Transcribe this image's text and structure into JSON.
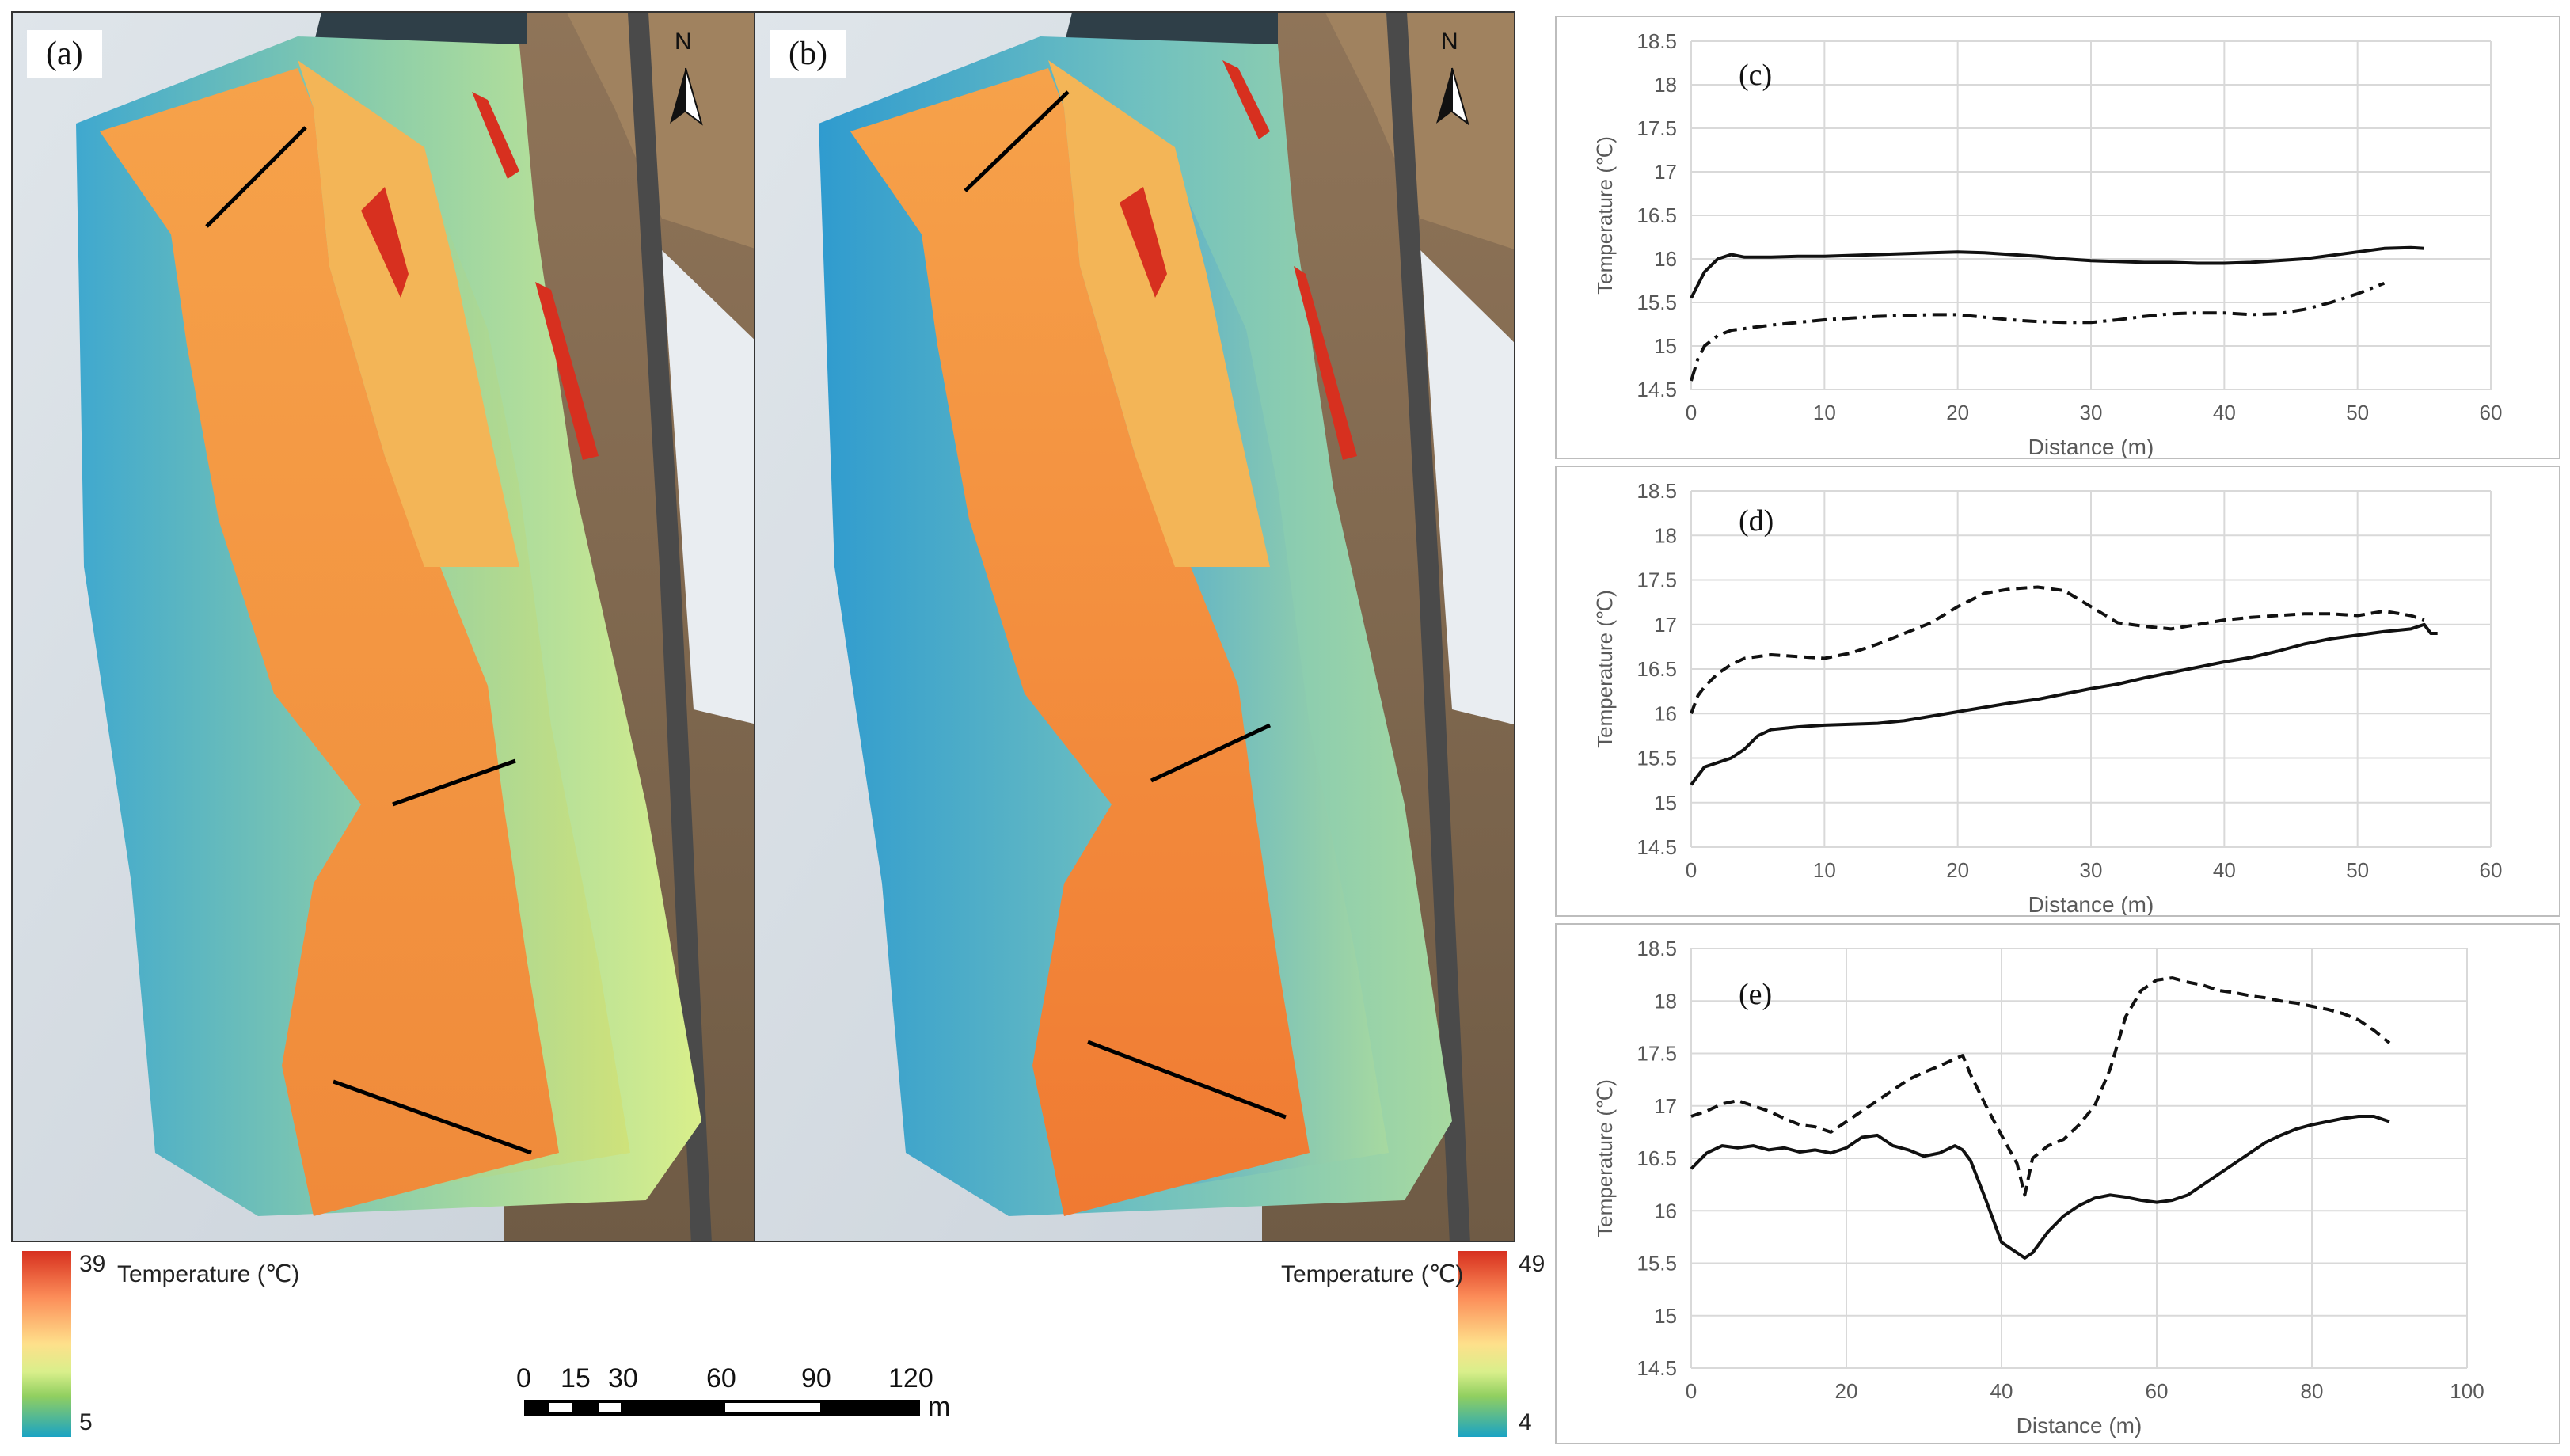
{
  "maps": [
    {
      "label": "(a)",
      "north": "N"
    },
    {
      "label": "(b)",
      "north": "N"
    }
  ],
  "legend_left": {
    "max": "39",
    "min": "5",
    "title": "Temperature (℃)",
    "colors": [
      "#d7301f",
      "#fc8d59",
      "#fee08b",
      "#d9ef8b",
      "#91cf60",
      "#1aa3c4"
    ]
  },
  "legend_right": {
    "max": "49",
    "min": "4",
    "title": "Temperature (℃)"
  },
  "scalebar": {
    "ticks": [
      "0",
      "15",
      "30",
      "60",
      "90",
      "120"
    ],
    "unit": "m"
  },
  "colors": {
    "hot": "#f28a3a",
    "hot2": "#f6a24a",
    "warm": "#f1c94f",
    "mild": "#cfe27a",
    "cool": "#8fcfa8",
    "cold": "#3fa8cf",
    "snow": "#eef1f4",
    "rock": "#9b7b57"
  },
  "chart_data": [
    {
      "type": "line",
      "panel_label": "(c)",
      "xlabel": "Distance (m)",
      "ylabel": "Temperature (℃)",
      "xlim": [
        0,
        60
      ],
      "ylim": [
        14.5,
        18.5
      ],
      "xticks": [
        "0",
        "10",
        "20",
        "30",
        "40",
        "50",
        "60"
      ],
      "yticks": [
        "14.5",
        "15",
        "15.5",
        "16",
        "16.5",
        "17",
        "17.5",
        "18",
        "18.5"
      ],
      "grid": true,
      "series": [
        {
          "style": "solid",
          "x": [
            0,
            0.5,
            1,
            2,
            3,
            4,
            6,
            8,
            10,
            12,
            14,
            16,
            18,
            20,
            22,
            24,
            26,
            28,
            30,
            32,
            34,
            36,
            38,
            40,
            42,
            44,
            46,
            48,
            50,
            52,
            54,
            55
          ],
          "y": [
            15.55,
            15.7,
            15.85,
            16.0,
            16.05,
            16.02,
            16.02,
            16.03,
            16.03,
            16.04,
            16.05,
            16.06,
            16.07,
            16.08,
            16.07,
            16.05,
            16.03,
            16.0,
            15.98,
            15.97,
            15.96,
            15.96,
            15.95,
            15.95,
            15.96,
            15.98,
            16.0,
            16.04,
            16.08,
            16.12,
            16.13,
            16.12
          ]
        },
        {
          "style": "dashdot",
          "x": [
            0,
            0.5,
            1,
            2,
            3,
            4,
            6,
            8,
            10,
            12,
            14,
            16,
            18,
            20,
            22,
            24,
            26,
            28,
            30,
            32,
            34,
            36,
            38,
            40,
            42,
            44,
            46,
            48,
            50,
            52
          ],
          "y": [
            14.6,
            14.85,
            15.0,
            15.12,
            15.18,
            15.2,
            15.24,
            15.27,
            15.3,
            15.32,
            15.34,
            15.35,
            15.36,
            15.36,
            15.33,
            15.3,
            15.28,
            15.27,
            15.27,
            15.3,
            15.34,
            15.37,
            15.38,
            15.38,
            15.36,
            15.37,
            15.42,
            15.5,
            15.6,
            15.72
          ]
        }
      ]
    },
    {
      "type": "line",
      "panel_label": "(d)",
      "xlabel": "Distance (m)",
      "ylabel": "Temperature (℃)",
      "xlim": [
        0,
        60
      ],
      "ylim": [
        14.5,
        18.5
      ],
      "xticks": [
        "0",
        "10",
        "20",
        "30",
        "40",
        "50",
        "60"
      ],
      "yticks": [
        "14.5",
        "15",
        "15.5",
        "16",
        "16.5",
        "17",
        "17.5",
        "18",
        "18.5"
      ],
      "grid": true,
      "series": [
        {
          "style": "solid",
          "x": [
            0,
            1,
            2,
            3,
            4,
            5,
            6,
            8,
            10,
            12,
            14,
            16,
            18,
            20,
            22,
            24,
            26,
            28,
            30,
            32,
            34,
            36,
            38,
            40,
            42,
            44,
            46,
            48,
            50,
            52,
            54,
            55,
            55.5,
            56
          ],
          "y": [
            15.2,
            15.4,
            15.45,
            15.5,
            15.6,
            15.75,
            15.82,
            15.85,
            15.87,
            15.88,
            15.89,
            15.92,
            15.97,
            16.02,
            16.07,
            16.12,
            16.16,
            16.22,
            16.28,
            16.33,
            16.4,
            16.46,
            16.52,
            16.58,
            16.63,
            16.7,
            16.78,
            16.84,
            16.88,
            16.92,
            16.95,
            17.0,
            16.9,
            16.9
          ]
        },
        {
          "style": "dashed",
          "x": [
            0,
            0.5,
            1,
            2,
            3,
            4,
            6,
            8,
            10,
            12,
            14,
            16,
            18,
            20,
            22,
            24,
            26,
            28,
            30,
            32,
            34,
            36,
            38,
            40,
            42,
            44,
            46,
            48,
            50,
            52,
            54,
            55
          ],
          "y": [
            16.0,
            16.2,
            16.3,
            16.45,
            16.55,
            16.62,
            16.66,
            16.64,
            16.62,
            16.68,
            16.78,
            16.9,
            17.02,
            17.2,
            17.35,
            17.4,
            17.42,
            17.38,
            17.2,
            17.02,
            16.98,
            16.95,
            17.0,
            17.05,
            17.08,
            17.1,
            17.12,
            17.12,
            17.1,
            17.15,
            17.1,
            17.05
          ]
        }
      ]
    },
    {
      "type": "line",
      "panel_label": "(e)",
      "xlabel": "Distance (m)",
      "ylabel": "Temperature (℃)",
      "xlim": [
        0,
        100
      ],
      "ylim": [
        14.5,
        18.5
      ],
      "xticks": [
        "0",
        "20",
        "40",
        "60",
        "80",
        "100"
      ],
      "yticks": [
        "14.5",
        "15",
        "15.5",
        "16",
        "16.5",
        "17",
        "17.5",
        "18",
        "18.5"
      ],
      "grid": true,
      "series": [
        {
          "style": "solid",
          "x": [
            0,
            2,
            4,
            6,
            8,
            10,
            12,
            14,
            16,
            18,
            20,
            22,
            24,
            26,
            28,
            30,
            32,
            34,
            35,
            36,
            38,
            40,
            42,
            43,
            44,
            46,
            48,
            50,
            52,
            54,
            56,
            58,
            60,
            62,
            64,
            66,
            68,
            70,
            72,
            74,
            76,
            78,
            80,
            82,
            84,
            86,
            88,
            90
          ],
          "y": [
            16.4,
            16.55,
            16.62,
            16.6,
            16.62,
            16.58,
            16.6,
            16.56,
            16.58,
            16.55,
            16.6,
            16.7,
            16.72,
            16.62,
            16.58,
            16.52,
            16.55,
            16.62,
            16.58,
            16.48,
            16.1,
            15.7,
            15.6,
            15.55,
            15.6,
            15.8,
            15.95,
            16.05,
            16.12,
            16.15,
            16.13,
            16.1,
            16.08,
            16.1,
            16.15,
            16.25,
            16.35,
            16.45,
            16.55,
            16.65,
            16.72,
            16.78,
            16.82,
            16.85,
            16.88,
            16.9,
            16.9,
            16.85
          ]
        },
        {
          "style": "dashed",
          "x": [
            0,
            2,
            4,
            6,
            8,
            10,
            12,
            14,
            16,
            18,
            20,
            22,
            24,
            26,
            28,
            30,
            32,
            34,
            35,
            36,
            38,
            40,
            42,
            43,
            44,
            46,
            48,
            50,
            52,
            54,
            56,
            58,
            60,
            62,
            64,
            66,
            68,
            70,
            72,
            74,
            76,
            78,
            80,
            82,
            84,
            86,
            88,
            90
          ],
          "y": [
            16.9,
            16.95,
            17.02,
            17.05,
            17.0,
            16.95,
            16.88,
            16.82,
            16.8,
            16.75,
            16.85,
            16.95,
            17.05,
            17.15,
            17.25,
            17.32,
            17.38,
            17.45,
            17.48,
            17.3,
            17.0,
            16.72,
            16.45,
            16.15,
            16.5,
            16.62,
            16.68,
            16.82,
            17.0,
            17.35,
            17.85,
            18.1,
            18.2,
            18.22,
            18.18,
            18.15,
            18.1,
            18.08,
            18.05,
            18.03,
            18.0,
            17.98,
            17.95,
            17.92,
            17.88,
            17.82,
            17.72,
            17.6
          ]
        }
      ]
    }
  ]
}
